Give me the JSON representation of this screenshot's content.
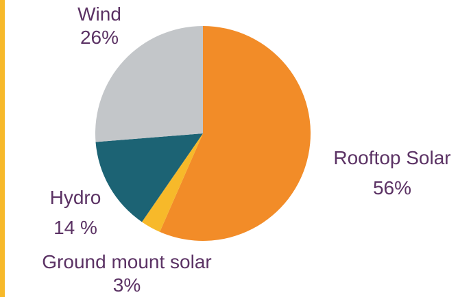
{
  "colors": {
    "accent_bar": "#f7b92a",
    "label_text": "#5b3264"
  },
  "chart_data": {
    "type": "pie",
    "slices": [
      {
        "label": "Rooftop Solar",
        "value": 56,
        "pct_label": "56%",
        "color": "#f28c28"
      },
      {
        "label": "Ground mount solar",
        "value": 3,
        "pct_label": "3%",
        "color": "#f7b92a"
      },
      {
        "label": "Hydro",
        "value": 14,
        "pct_label": "14 %",
        "color": "#1c6374"
      },
      {
        "label": "Wind",
        "value": 26,
        "pct_label": "26%",
        "color": "#c3c6c9"
      }
    ]
  }
}
